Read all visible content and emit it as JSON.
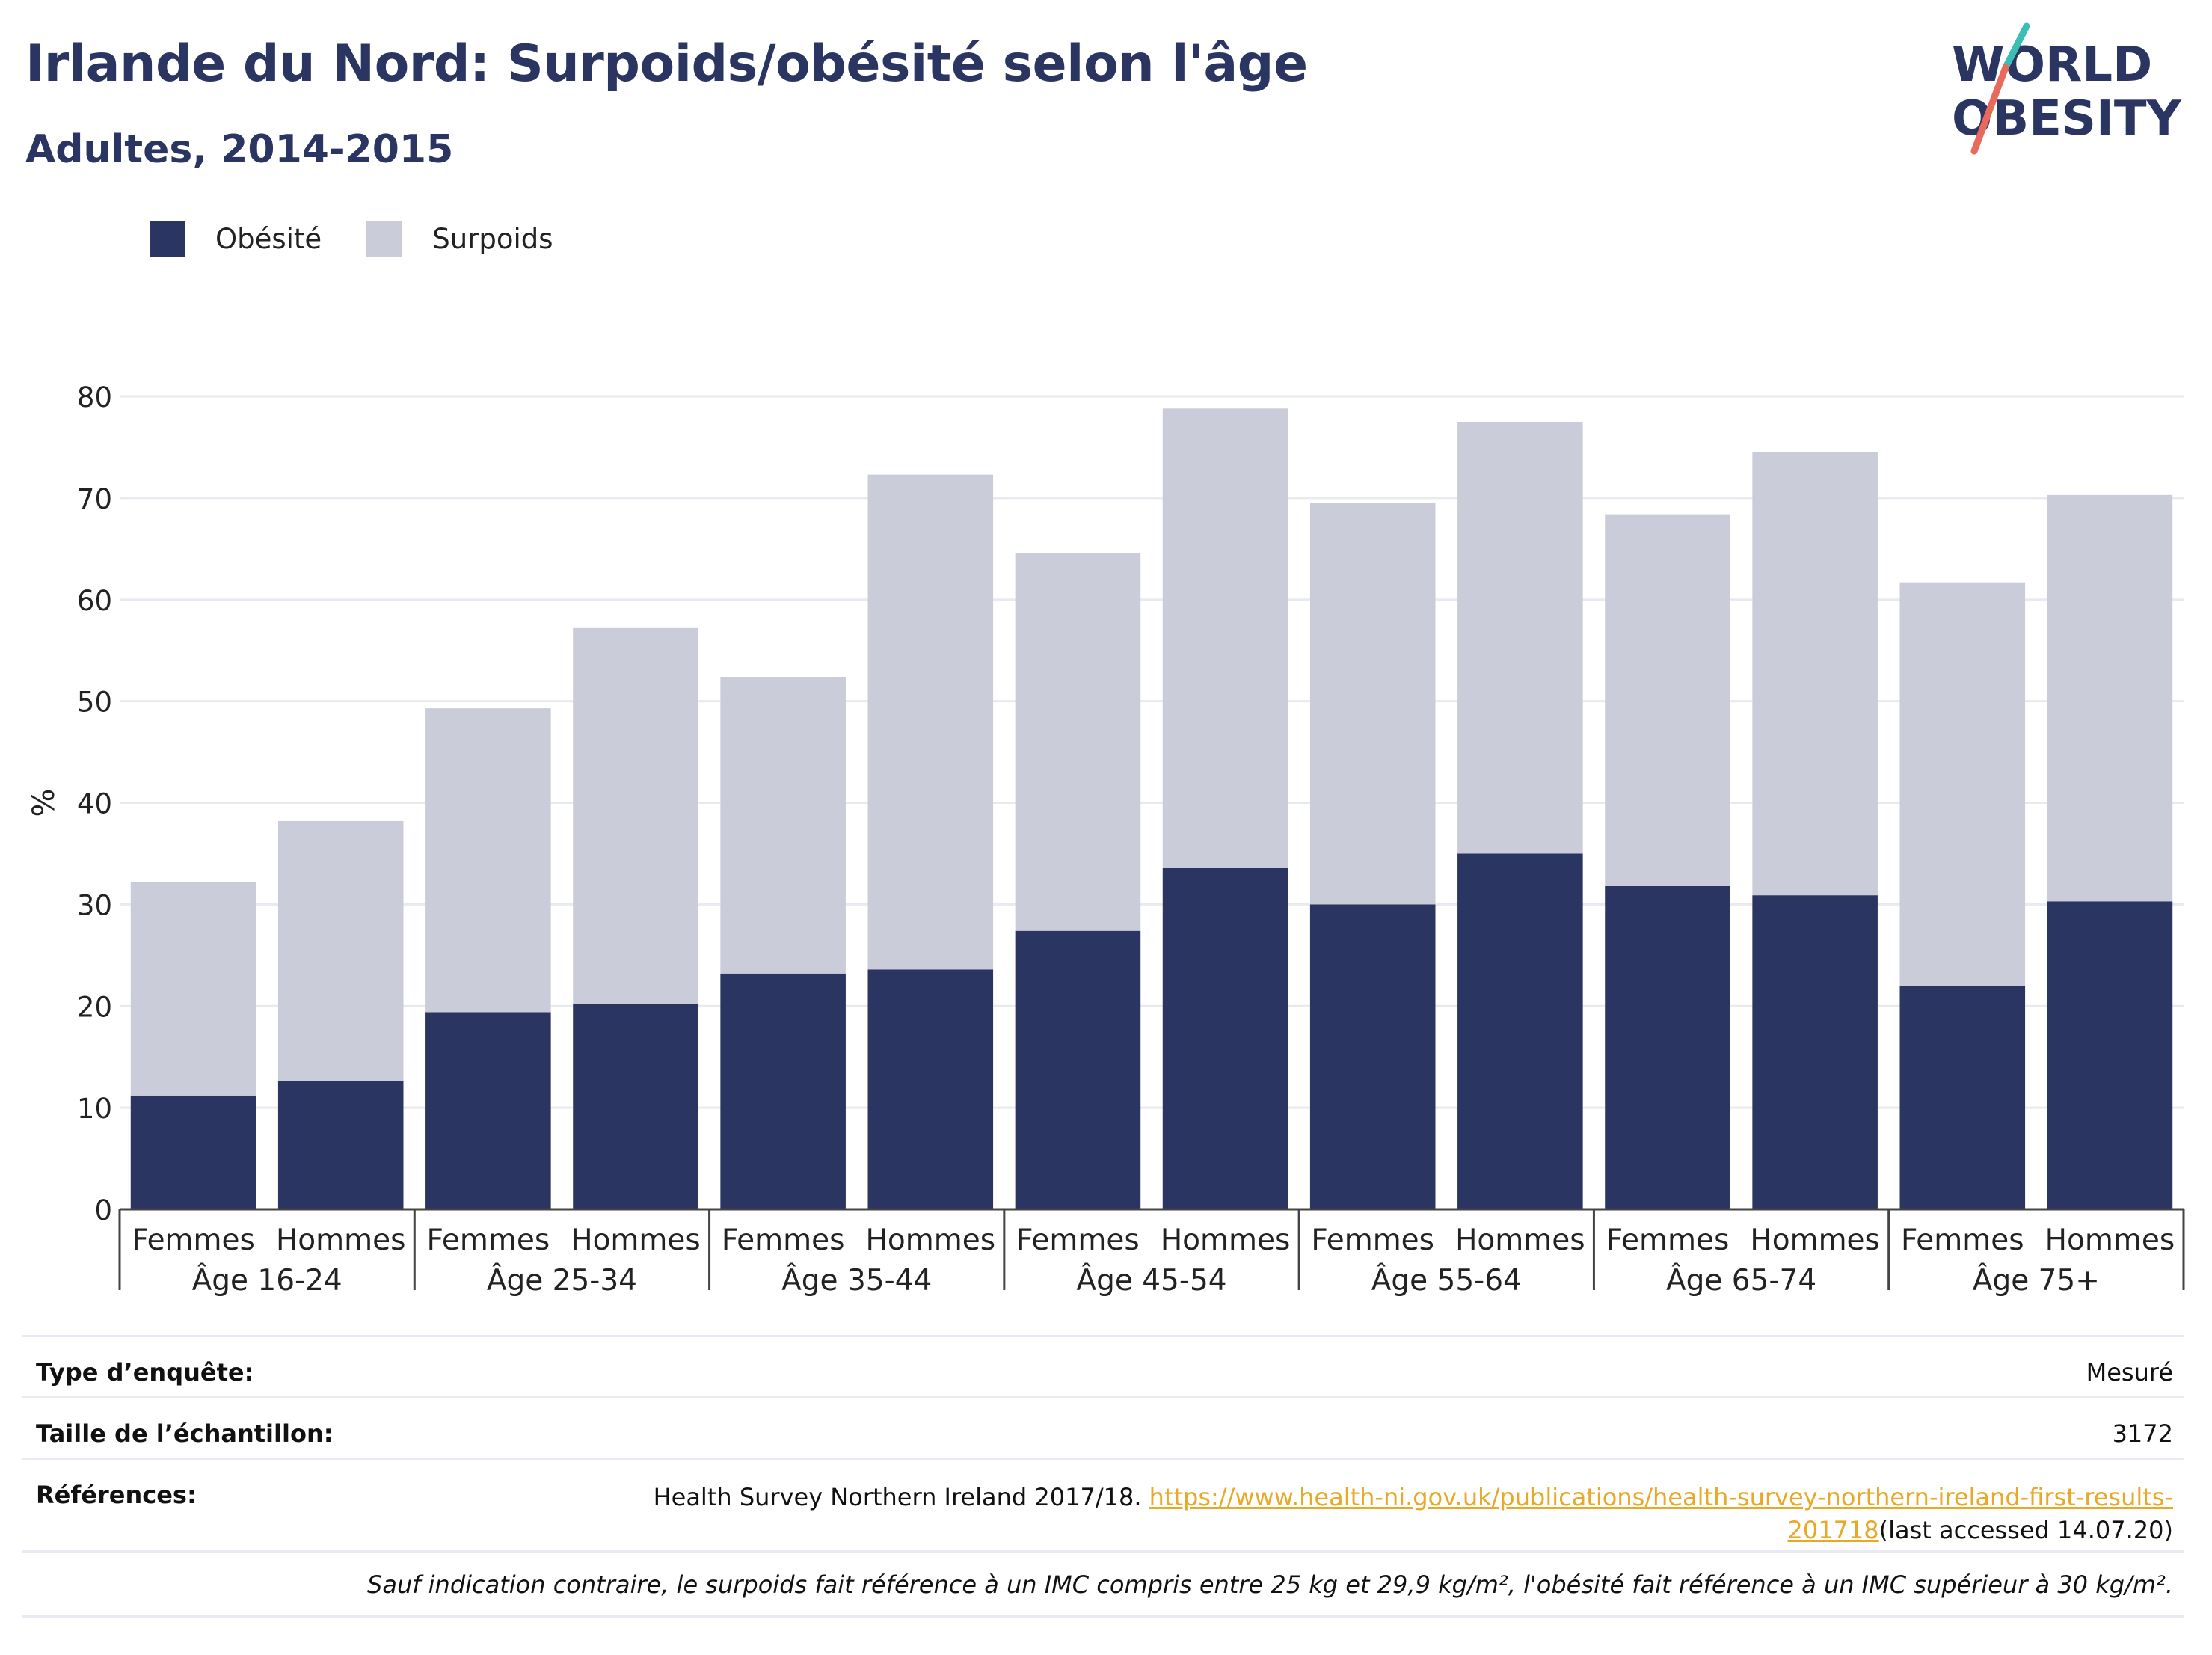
{
  "title": "Irlande du Nord: Surpoids/obésité selon l'âge",
  "subtitle": "Adultes, 2014-2015",
  "logo": {
    "line1": "WORLD",
    "line2": "OBESITY",
    "colors": {
      "text": "#2a3561",
      "slash_top": "#3bbfb5",
      "slash_bottom": "#e86a5a"
    }
  },
  "legend": [
    {
      "label": "Obésité",
      "color": "#2a3561"
    },
    {
      "label": "Surpoids",
      "color": "#cacdd9"
    }
  ],
  "chart_data": {
    "type": "bar",
    "stacked": true,
    "ylabel": "%",
    "ylim": [
      0,
      80
    ],
    "yticks": [
      0,
      10,
      20,
      30,
      40,
      50,
      60,
      70,
      80
    ],
    "grid": true,
    "groups": [
      "Âge 16-24",
      "Âge 25-34",
      "Âge 35-44",
      "Âge 45-54",
      "Âge 55-64",
      "Âge 65-74",
      "Âge 75+"
    ],
    "categories": [
      "Femmes",
      "Hommes",
      "Femmes",
      "Hommes",
      "Femmes",
      "Hommes",
      "Femmes",
      "Hommes",
      "Femmes",
      "Hommes",
      "Femmes",
      "Hommes",
      "Femmes",
      "Hommes"
    ],
    "series": [
      {
        "name": "Obésité",
        "color": "#2a3561",
        "values": [
          11.2,
          12.6,
          19.4,
          20.2,
          23.2,
          23.6,
          27.4,
          33.6,
          30.0,
          35.0,
          31.8,
          30.9,
          22.0,
          30.3
        ]
      },
      {
        "name": "Surpoids",
        "color": "#cacdd9",
        "values": [
          21.0,
          25.6,
          29.9,
          37.0,
          29.2,
          48.7,
          37.2,
          45.2,
          39.5,
          42.5,
          36.6,
          43.6,
          39.7,
          40.0
        ]
      }
    ]
  },
  "info": {
    "survey_type_label": "Type d’enquête:",
    "survey_type_value": "Mesuré",
    "sample_size_label": "Taille de l’échantillon:",
    "sample_size_value": "3172",
    "references_label": "Références:",
    "references_text": "Health Survey Northern Ireland 2017/18. ",
    "references_link_1": "https://www.health-ni.gov.uk/publications/health-survey-northern-ireland-first-results-",
    "references_link_2": "201718",
    "references_suffix": "(last accessed 14.07.20)",
    "note": "Sauf indication contraire, le surpoids fait référence à un IMC compris entre 25 kg et 29,9 kg/m², l'obésité fait référence à un IMC supérieur à 30 kg/m²."
  }
}
